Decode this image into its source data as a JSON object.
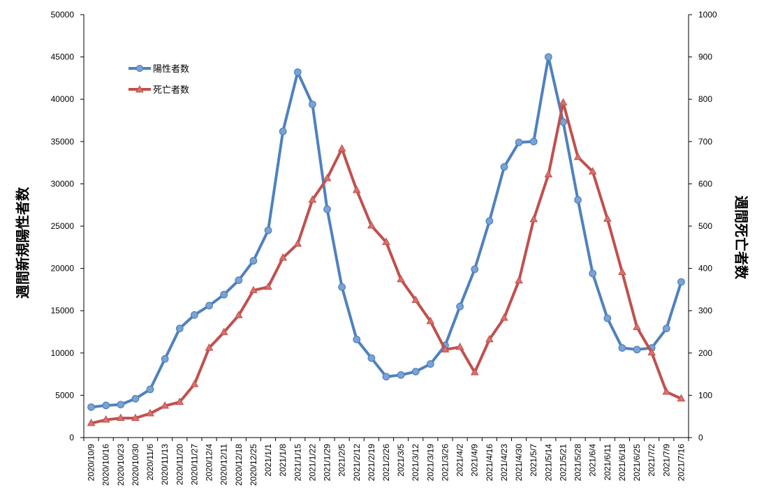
{
  "chart_data": {
    "type": "line",
    "x": [
      "2020/10/9",
      "2020/10/16",
      "2020/10/23",
      "2020/10/30",
      "2020/11/6",
      "2020/11/13",
      "2020/11/20",
      "2020/11/27",
      "2020/12/4",
      "2020/12/11",
      "2020/12/18",
      "2020/12/25",
      "2021/1/1",
      "2021/1/8",
      "2021/1/15",
      "2021/1/22",
      "2021/1/29",
      "2021/2/5",
      "2021/2/12",
      "2021/2/19",
      "2021/2/26",
      "2021/3/5",
      "2021/3/12",
      "2021/3/19",
      "2021/3/26",
      "2021/4/2",
      "2021/4/9",
      "2021/4/16",
      "2021/4/23",
      "2021/4/30",
      "2021/5/7",
      "2021/5/14",
      "2021/5/21",
      "2021/5/28",
      "2021/6/4",
      "2021/6/11",
      "2021/6/18",
      "2021/6/25",
      "2021/7/2",
      "2021/7/9",
      "2021/7/16"
    ],
    "series": [
      {
        "name": "陽性者数",
        "axis": "left",
        "color": "#4f81bd",
        "marker": "circle",
        "values": [
          3600,
          3800,
          3900,
          4600,
          5700,
          9300,
          12900,
          14500,
          15600,
          16900,
          18600,
          20900,
          24500,
          36200,
          43200,
          39400,
          27000,
          17800,
          11600,
          9400,
          7200,
          7400,
          7800,
          8700,
          10900,
          15500,
          19900,
          25600,
          32000,
          34900,
          35000,
          45000,
          37300,
          28100,
          19400,
          14100,
          10600,
          10400,
          10600,
          12900,
          18400
        ]
      },
      {
        "name": "死亡者数",
        "axis": "right",
        "color": "#c0504d",
        "marker": "triangle",
        "values": [
          34,
          42,
          46,
          46,
          57,
          75,
          84,
          126,
          212,
          249,
          289,
          348,
          356,
          425,
          458,
          562,
          613,
          683,
          585,
          501,
          462,
          374,
          325,
          275,
          208,
          214,
          154,
          232,
          283,
          371,
          516,
          622,
          792,
          663,
          629,
          517,
          391,
          261,
          201,
          108,
          92
        ]
      }
    ],
    "ylabel_left": "週間新規陽性者数",
    "ylabel_right": "週間死亡者数",
    "ylim_left": [
      0,
      50000
    ],
    "ylim_right": [
      0,
      1000
    ],
    "yticks_left": [
      "0",
      "5000",
      "10000",
      "15000",
      "20000",
      "25000",
      "30000",
      "35000",
      "40000",
      "45000",
      "50000"
    ],
    "yticks_right": [
      "0",
      "100",
      "200",
      "300",
      "400",
      "500",
      "600",
      "700",
      "800",
      "900",
      "1000"
    ],
    "grid": false,
    "legend_position": "top-left"
  }
}
